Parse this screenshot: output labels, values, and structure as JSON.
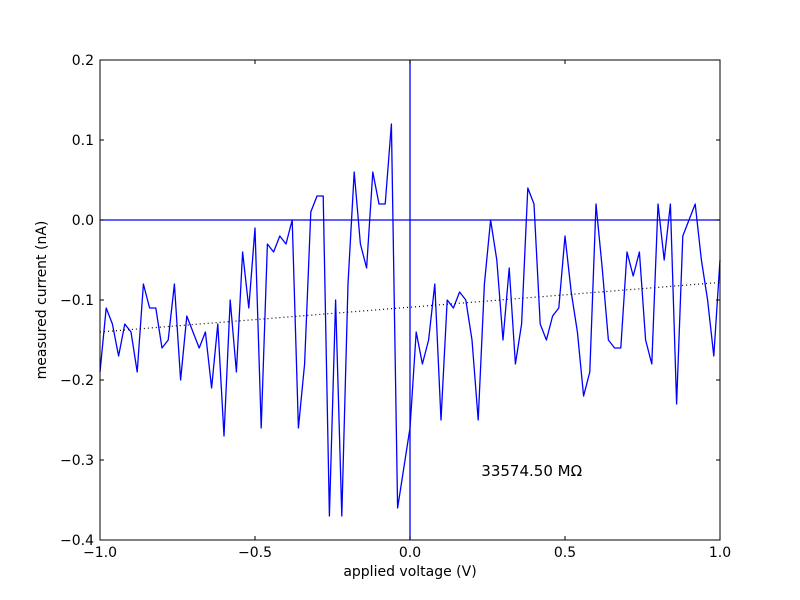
{
  "chart_data": {
    "type": "line",
    "xlabel": "applied voltage (V)",
    "ylabel": "measured current (nA)",
    "xlim": [
      -1.0,
      1.0
    ],
    "ylim": [
      -0.4,
      0.2
    ],
    "x_ticks": [
      -1.0,
      -0.5,
      0.0,
      0.5,
      1.0
    ],
    "x_tick_labels": [
      "−1.0",
      "−0.5",
      "0.0",
      "0.5",
      "1.0"
    ],
    "y_ticks": [
      0.2,
      0.1,
      0.0,
      -0.1,
      -0.2,
      -0.3,
      -0.4
    ],
    "y_tick_labels": [
      "0.2",
      "0.1",
      "0.0",
      "−0.1",
      "−0.2",
      "−0.3",
      "−0.4"
    ],
    "grid": false,
    "reference_lines": {
      "horizontal_y": 0.0,
      "vertical_x": 0.0,
      "color": "#0000ff"
    },
    "series": [
      {
        "style": "solid",
        "color": "#0000ff",
        "x": [
          -1.0,
          -0.98,
          -0.96,
          -0.94,
          -0.92,
          -0.9,
          -0.88,
          -0.86,
          -0.84,
          -0.82,
          -0.8,
          -0.78,
          -0.76,
          -0.74,
          -0.72,
          -0.7,
          -0.68,
          -0.66,
          -0.64,
          -0.62,
          -0.6,
          -0.58,
          -0.56,
          -0.54,
          -0.52,
          -0.5,
          -0.48,
          -0.46,
          -0.44,
          -0.42,
          -0.4,
          -0.38,
          -0.36,
          -0.34,
          -0.32,
          -0.3,
          -0.28,
          -0.26,
          -0.24,
          -0.22,
          -0.2,
          -0.18,
          -0.16,
          -0.14,
          -0.12,
          -0.1,
          -0.08,
          -0.06,
          -0.04,
          -0.02,
          0.0,
          0.02,
          0.04,
          0.06,
          0.08,
          0.1,
          0.12,
          0.14,
          0.16,
          0.18,
          0.2,
          0.22,
          0.24,
          0.26,
          0.28,
          0.3,
          0.32,
          0.34,
          0.36,
          0.38,
          0.4,
          0.42,
          0.44,
          0.46,
          0.48,
          0.5,
          0.52,
          0.54,
          0.56,
          0.58,
          0.6,
          0.62,
          0.64,
          0.66,
          0.68,
          0.7,
          0.72,
          0.74,
          0.76,
          0.78,
          0.8,
          0.82,
          0.84,
          0.86,
          0.88,
          0.9,
          0.92,
          0.94,
          0.96,
          0.98,
          1.0
        ],
        "y": [
          -0.19,
          -0.11,
          -0.13,
          -0.17,
          -0.13,
          -0.14,
          -0.19,
          -0.08,
          -0.11,
          -0.11,
          -0.16,
          -0.15,
          -0.08,
          -0.2,
          -0.12,
          -0.14,
          -0.16,
          -0.14,
          -0.21,
          -0.13,
          -0.27,
          -0.1,
          -0.19,
          -0.04,
          -0.11,
          -0.01,
          -0.26,
          -0.03,
          -0.04,
          -0.02,
          -0.03,
          0.0,
          -0.26,
          -0.18,
          0.01,
          0.03,
          0.03,
          -0.37,
          -0.1,
          -0.37,
          -0.08,
          0.06,
          -0.03,
          -0.06,
          0.06,
          0.02,
          0.02,
          0.12,
          -0.36,
          -0.31,
          -0.26,
          -0.14,
          -0.18,
          -0.15,
          -0.08,
          -0.25,
          -0.1,
          -0.11,
          -0.09,
          -0.1,
          -0.15,
          -0.25,
          -0.08,
          0.0,
          -0.05,
          -0.15,
          -0.06,
          -0.18,
          -0.13,
          0.04,
          0.02,
          -0.13,
          -0.15,
          -0.12,
          -0.11,
          -0.02,
          -0.09,
          -0.14,
          -0.22,
          -0.19,
          0.02,
          -0.06,
          -0.15,
          -0.16,
          -0.16,
          -0.04,
          -0.07,
          -0.04,
          -0.15,
          -0.18,
          0.02,
          -0.05,
          0.02,
          -0.23,
          -0.02,
          0.0,
          0.02,
          -0.05,
          -0.1,
          -0.17,
          -0.05
        ]
      },
      {
        "style": "dotted",
        "color": "#000000",
        "x": [
          -1.0,
          1.0
        ],
        "y": [
          -0.14,
          -0.078
        ]
      }
    ],
    "annotations": [
      {
        "text": "33574.50 MΩ",
        "x": 0.23,
        "y": -0.32
      }
    ]
  }
}
